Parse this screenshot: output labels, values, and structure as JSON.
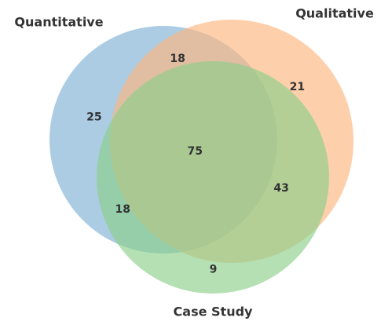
{
  "chart_data": {
    "type": "venn",
    "sets": [
      {
        "name": "Quantitative",
        "color": "#7fb0d5"
      },
      {
        "name": "Qualitative",
        "color": "#fdb57e"
      },
      {
        "name": "Case Study",
        "color": "#8ccf8a"
      }
    ],
    "regions": [
      {
        "sets": [
          "Quantitative"
        ],
        "value": 25
      },
      {
        "sets": [
          "Qualitative"
        ],
        "value": 21
      },
      {
        "sets": [
          "Case Study"
        ],
        "value": 9
      },
      {
        "sets": [
          "Quantitative",
          "Qualitative"
        ],
        "value": 18
      },
      {
        "sets": [
          "Quantitative",
          "Case Study"
        ],
        "value": 18
      },
      {
        "sets": [
          "Qualitative",
          "Case Study"
        ],
        "value": 43
      },
      {
        "sets": [
          "Quantitative",
          "Qualitative",
          "Case Study"
        ],
        "value": 75
      }
    ]
  }
}
